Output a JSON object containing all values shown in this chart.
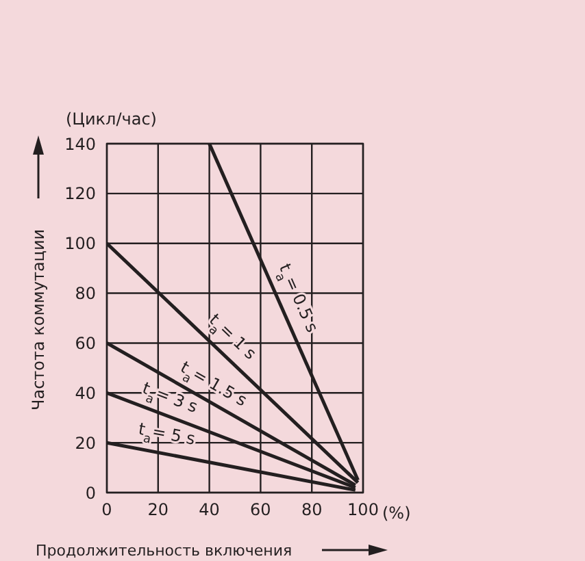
{
  "chart_data": {
    "type": "line",
    "ylabel": "Частота коммутации",
    "xlabel": "Продолжительность включения",
    "xlim": [
      0,
      100
    ],
    "xticks": [
      0,
      20,
      40,
      60,
      80,
      100
    ],
    "ylim": [
      0,
      140
    ],
    "yticks": [
      0,
      20,
      40,
      60,
      80,
      100,
      120,
      140
    ],
    "grid": true,
    "series": [
      {
        "color": "#231f20",
        "x": [
          40,
          98
        ],
        "values": [
          140,
          5
        ]
      },
      {
        "color": "#231f20",
        "x": [
          0,
          98
        ],
        "values": [
          100,
          4
        ]
      },
      {
        "color": "#231f20",
        "x": [
          0,
          97
        ],
        "values": [
          60,
          3
        ]
      },
      {
        "color": "#231f20",
        "x": [
          0,
          97
        ],
        "values": [
          40,
          2
        ]
      },
      {
        "color": "#231f20",
        "x": [
          0,
          97
        ],
        "values": [
          20,
          1
        ]
      }
    ],
    "annotations": [
      "(Цикл/час)",
      "(%)",
      {
        "text": "t$_{a}$= 0.5 s",
        "x": 68,
        "y": 75
      },
      {
        "text": "t$_{a}$= 1 s",
        "x": 44,
        "y": 57
      },
      {
        "text": "t$_{a}$= 1.5 s",
        "x": 38,
        "y": 37
      },
      {
        "text": "t$_{a}$= 3 s",
        "x": 22,
        "y": 31
      },
      {
        "text": "t$_{a}$= 5 s",
        "x": 22,
        "y": 16
      }
    ]
  }
}
